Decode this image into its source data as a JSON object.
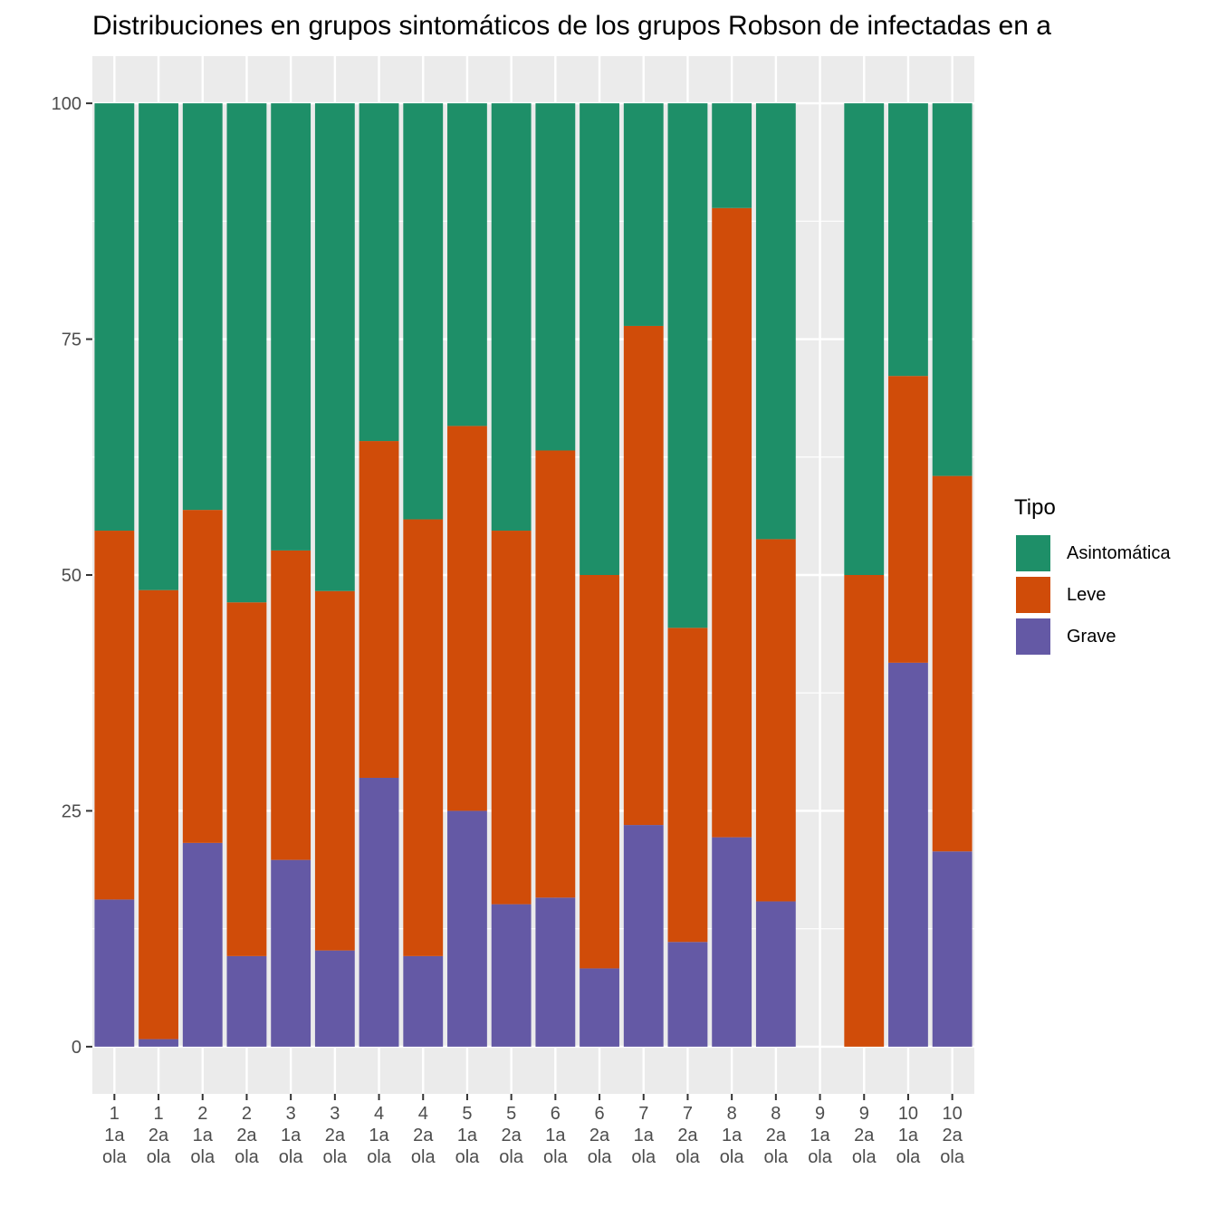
{
  "chart_data": {
    "type": "bar",
    "stacked": true,
    "title": "Distribuciones en grupos sintomáticos de los grupos Robson de  infectadas en a",
    "xlabel": "",
    "ylabel": "",
    "ylim": [
      -5,
      105
    ],
    "yticks": [
      0,
      25,
      50,
      75,
      100
    ],
    "grid": true,
    "legend_position": "right",
    "legend_title": "Tipo",
    "categories": [
      [
        "1",
        "1a",
        "ola"
      ],
      [
        "1",
        "2a",
        "ola"
      ],
      [
        "2",
        "1a",
        "ola"
      ],
      [
        "2",
        "2a",
        "ola"
      ],
      [
        "3",
        "1a",
        "ola"
      ],
      [
        "3",
        "2a",
        "ola"
      ],
      [
        "4",
        "1a",
        "ola"
      ],
      [
        "4",
        "2a",
        "ola"
      ],
      [
        "5",
        "1a",
        "ola"
      ],
      [
        "5",
        "2a",
        "ola"
      ],
      [
        "6",
        "1a",
        "ola"
      ],
      [
        "6",
        "2a",
        "ola"
      ],
      [
        "7",
        "1a",
        "ola"
      ],
      [
        "7",
        "2a",
        "ola"
      ],
      [
        "8",
        "1a",
        "ola"
      ],
      [
        "8",
        "2a",
        "ola"
      ],
      [
        "9",
        "1a",
        "ola"
      ],
      [
        "9",
        "2a",
        "ola"
      ],
      [
        "10",
        "1a",
        "ola"
      ],
      [
        "10",
        "2a",
        "ola"
      ]
    ],
    "series": [
      {
        "name": "Grave",
        "color": "#6459a5",
        "values": [
          15.6,
          0.8,
          21.6,
          9.6,
          19.8,
          10.2,
          28.5,
          9.6,
          25.0,
          15.1,
          15.8,
          8.3,
          23.5,
          11.1,
          22.2,
          15.4,
          0,
          0,
          40.7,
          20.7
        ]
      },
      {
        "name": "Leve",
        "color": "#d04c09",
        "values": [
          39.1,
          47.6,
          35.3,
          37.5,
          32.8,
          38.1,
          35.7,
          46.3,
          40.8,
          39.6,
          47.4,
          41.7,
          52.9,
          33.3,
          66.7,
          38.4,
          0,
          50.0,
          30.4,
          39.8
        ]
      },
      {
        "name": "Asintomática",
        "color": "#1e8f68",
        "values": [
          45.3,
          51.6,
          43.1,
          52.9,
          47.4,
          51.7,
          35.8,
          44.1,
          34.2,
          45.3,
          36.8,
          50.0,
          23.6,
          55.6,
          11.1,
          46.2,
          0,
          50.0,
          28.9,
          39.5
        ]
      }
    ],
    "legend_order": [
      "Asintomática",
      "Leve",
      "Grave"
    ]
  }
}
